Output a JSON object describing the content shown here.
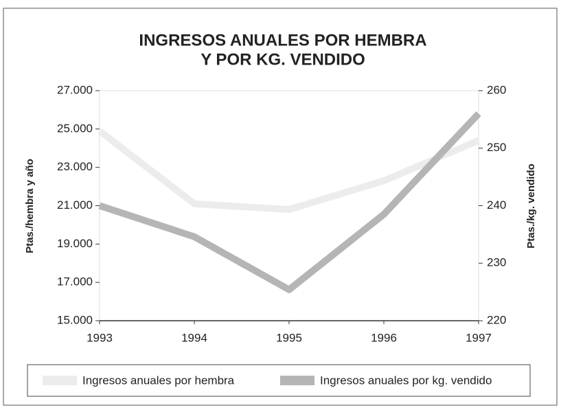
{
  "chart_data": {
    "type": "line",
    "title": [
      "INGRESOS ANUALES POR HEMBRA",
      "Y POR KG. VENDIDO"
    ],
    "categories": [
      "1993",
      "1994",
      "1995",
      "1996",
      "1997"
    ],
    "series": [
      {
        "name": "Ingresos anuales por hembra",
        "color": "#ececec",
        "values": [
          24900,
          21100,
          20800,
          22300,
          24400
        ]
      },
      {
        "name": "Ingresos anuales por kg. vendido",
        "color": "#b5b5b5",
        "axis": "y2",
        "values": [
          240,
          234.6,
          225.4,
          238.5,
          256
        ]
      }
    ],
    "ylabel": "Ptas./hembra y año",
    "y2label": "Ptas./kg. vendido",
    "ylim": [
      15000,
      27000
    ],
    "yticks": [
      {
        "value": 15000,
        "label": "15.000"
      },
      {
        "value": 17000,
        "label": "17.000"
      },
      {
        "value": 19000,
        "label": "19.000"
      },
      {
        "value": 21000,
        "label": "21.000"
      },
      {
        "value": 23000,
        "label": "23.000"
      },
      {
        "value": 25000,
        "label": "25.000"
      },
      {
        "value": 27000,
        "label": "27.000"
      }
    ],
    "y2lim": [
      220,
      260
    ],
    "y2ticks": [
      220,
      230,
      240,
      250,
      260
    ],
    "legend": "bottom"
  }
}
